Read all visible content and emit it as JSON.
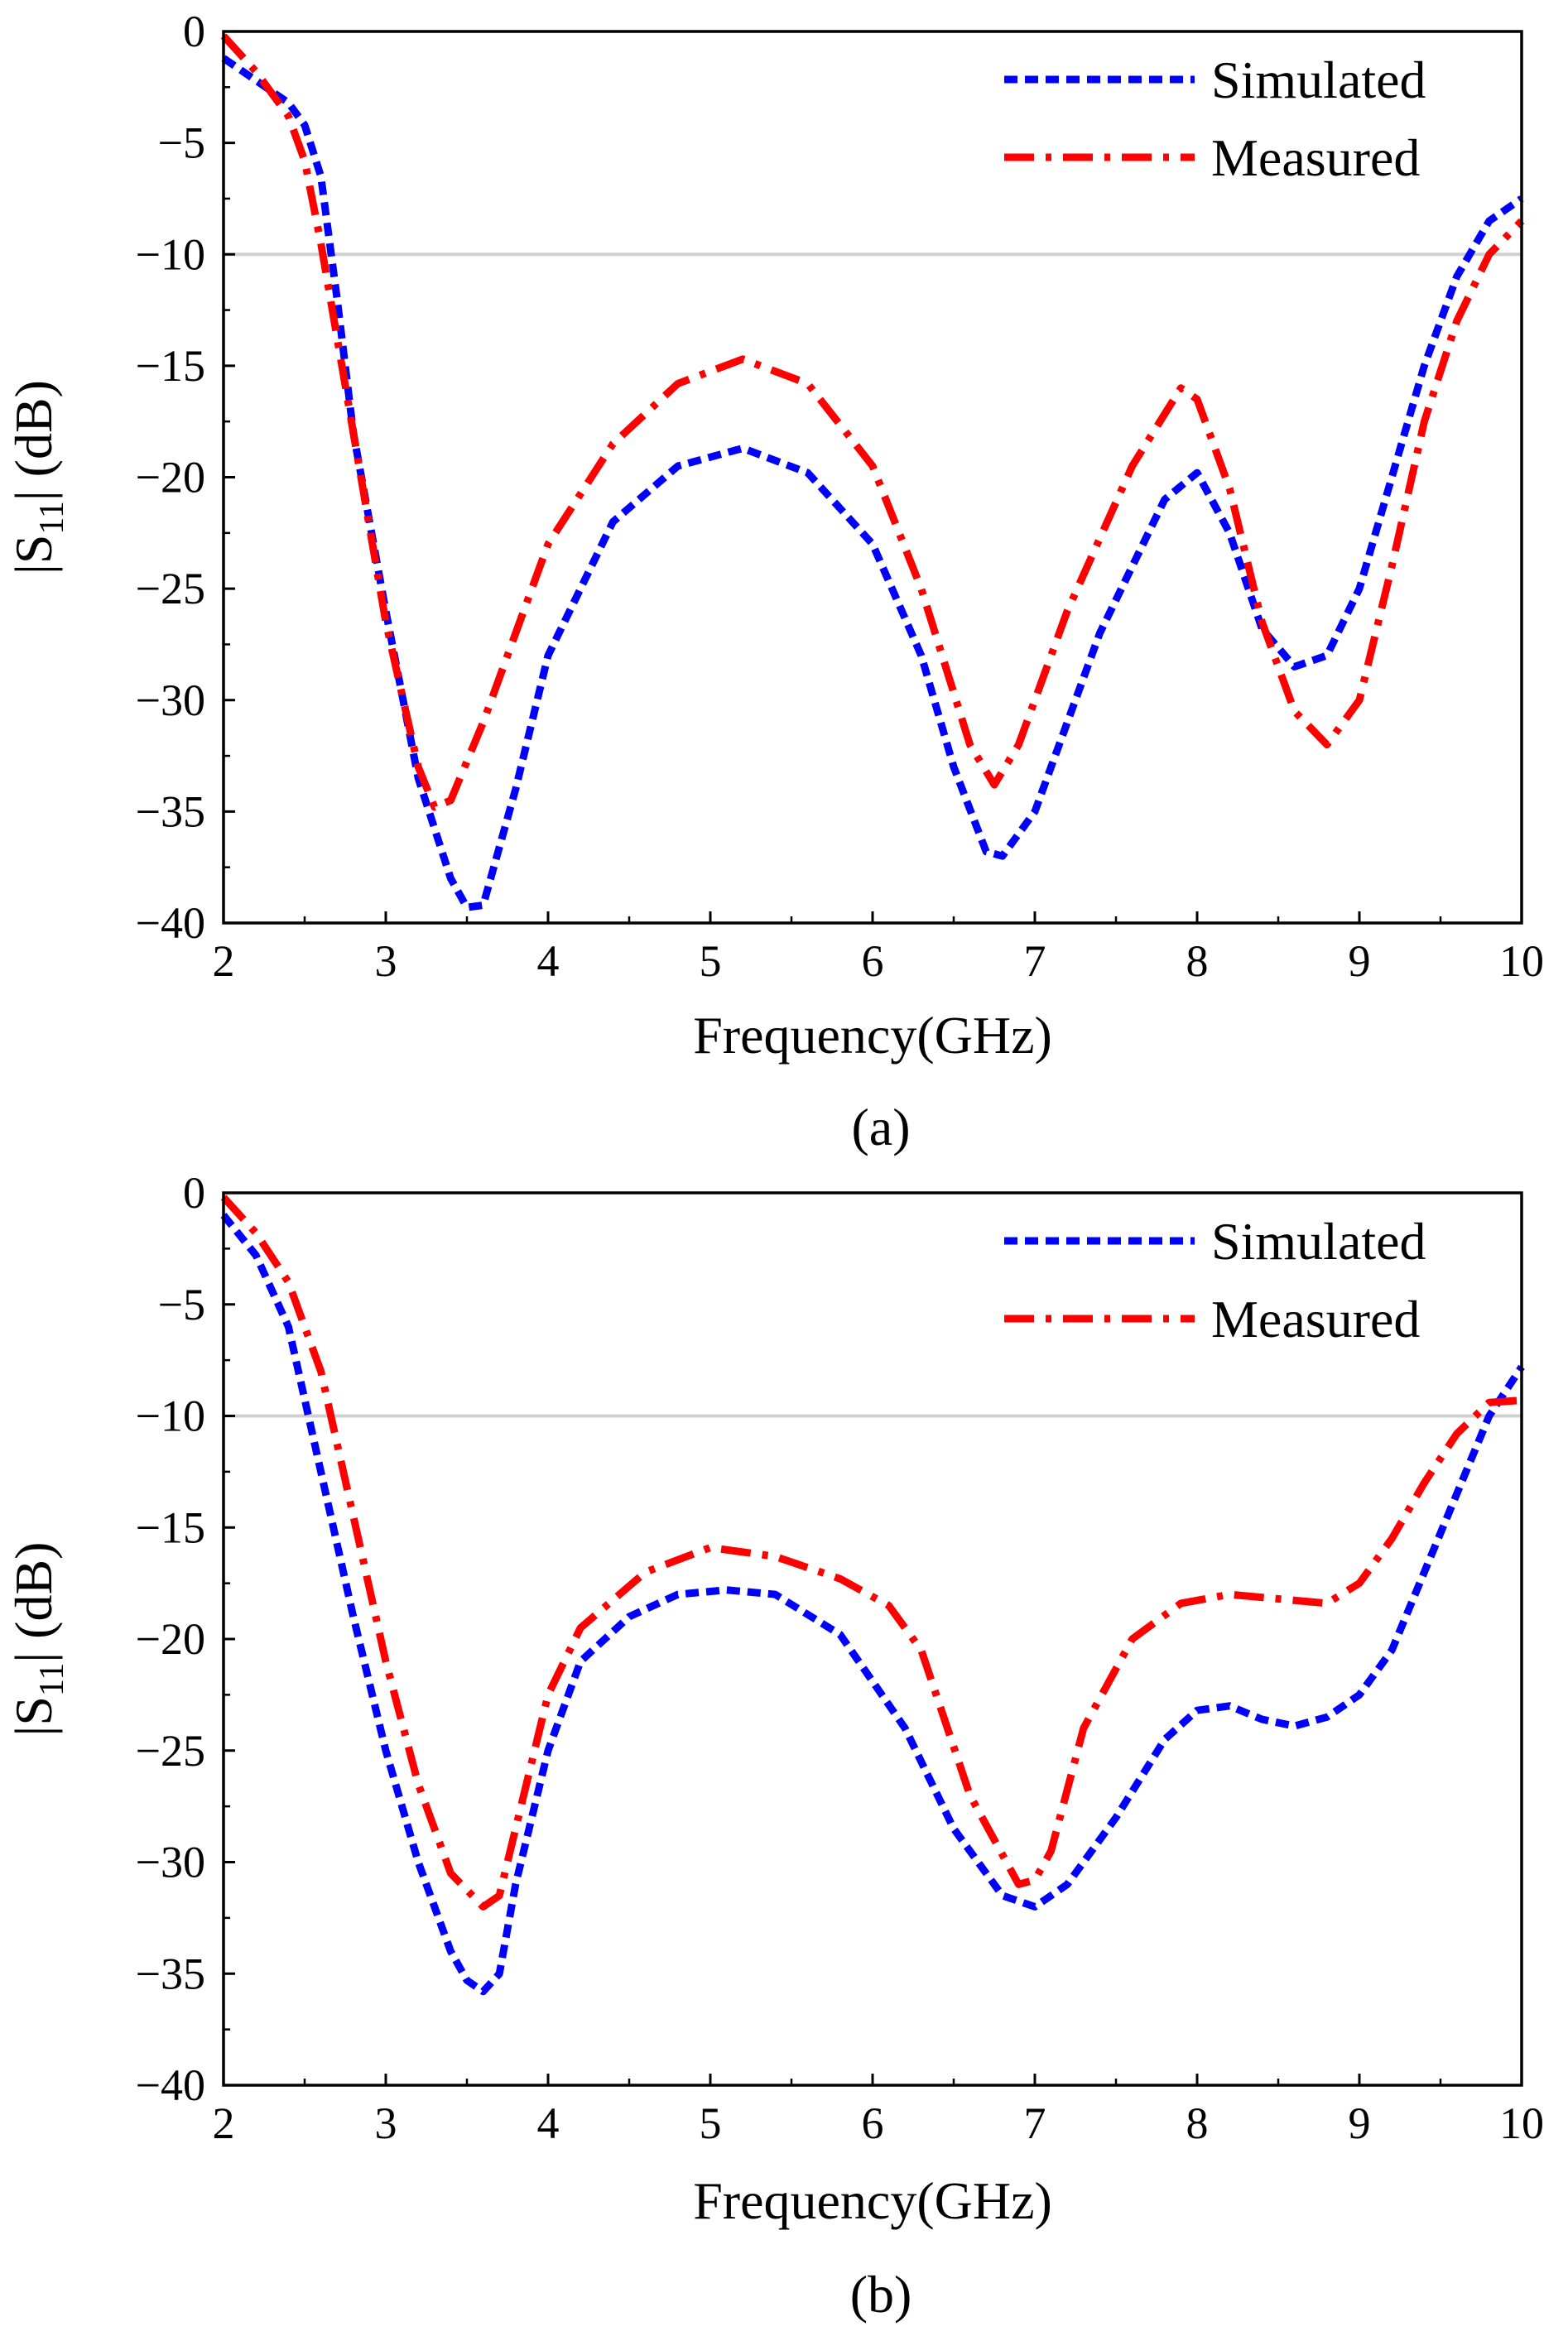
{
  "chart_data": [
    {
      "type": "line",
      "panel_caption": "(a)",
      "xlabel": "Frequency(GHz)",
      "ylabel_main": "|S",
      "ylabel_sub": "11",
      "ylabel_tail": "| (dB)",
      "xlim": [
        2,
        10
      ],
      "ylim": [
        -40,
        0
      ],
      "xticks": [
        2,
        3,
        4,
        5,
        6,
        7,
        8,
        9,
        10
      ],
      "yticks": [
        0,
        -5,
        -10,
        -15,
        -20,
        -25,
        -30,
        -35,
        -40
      ],
      "xtick_labels": [
        "2",
        "3",
        "4",
        "5",
        "6",
        "7",
        "8",
        "9",
        "10"
      ],
      "ytick_labels": [
        "0",
        "-5",
        "-10",
        "-15",
        "-20",
        "-25",
        "-30",
        "-35",
        "-40"
      ],
      "reference_line": -10,
      "legend_position": "top-right",
      "series": [
        {
          "name": "Simulated",
          "color": "#0000ff",
          "style": "dashed",
          "x": [
            2.0,
            2.2,
            2.4,
            2.5,
            2.6,
            2.7,
            2.8,
            3.0,
            3.2,
            3.4,
            3.5,
            3.6,
            3.8,
            4.0,
            4.4,
            4.8,
            5.2,
            5.6,
            6.0,
            6.3,
            6.5,
            6.7,
            6.8,
            7.0,
            7.4,
            7.8,
            8.0,
            8.2,
            8.4,
            8.6,
            8.8,
            9.0,
            9.2,
            9.4,
            9.6,
            9.8,
            10.0
          ],
          "y": [
            -1.2,
            -2.2,
            -3.2,
            -4.2,
            -6.5,
            -12.0,
            -18.0,
            -26.0,
            -33.5,
            -38.0,
            -39.3,
            -39.2,
            -34.0,
            -28.0,
            -22.0,
            -19.5,
            -18.7,
            -19.8,
            -23.0,
            -28.0,
            -33.0,
            -36.8,
            -37.0,
            -35.0,
            -27.0,
            -21.0,
            -19.8,
            -22.5,
            -26.8,
            -28.5,
            -28.0,
            -25.0,
            -20.0,
            -15.0,
            -11.0,
            -8.5,
            -7.5
          ]
        },
        {
          "name": "Measured",
          "color": "#ff0000",
          "style": "dash-dot",
          "x": [
            2.0,
            2.2,
            2.4,
            2.5,
            2.6,
            2.8,
            3.0,
            3.2,
            3.3,
            3.4,
            3.6,
            3.8,
            4.0,
            4.4,
            4.8,
            5.2,
            5.6,
            6.0,
            6.3,
            6.6,
            6.75,
            6.9,
            7.2,
            7.6,
            7.9,
            8.0,
            8.2,
            8.4,
            8.6,
            8.8,
            9.0,
            9.2,
            9.4,
            9.6,
            9.8,
            10.0
          ],
          "y": [
            -0.2,
            -1.8,
            -3.8,
            -5.8,
            -9.5,
            -18.0,
            -26.5,
            -33.0,
            -34.8,
            -34.5,
            -31.0,
            -27.0,
            -23.0,
            -18.5,
            -15.8,
            -14.7,
            -15.8,
            -19.5,
            -25.0,
            -32.0,
            -33.8,
            -32.0,
            -26.0,
            -19.5,
            -16.0,
            -16.5,
            -20.5,
            -26.5,
            -30.5,
            -32.0,
            -30.0,
            -24.0,
            -17.5,
            -13.0,
            -10.0,
            -8.5
          ]
        }
      ]
    },
    {
      "type": "line",
      "panel_caption": "(b)",
      "xlabel": "Frequency(GHz)",
      "ylabel_main": "|S",
      "ylabel_sub": "11",
      "ylabel_tail": "| (dB)",
      "xlim": [
        2,
        10
      ],
      "ylim": [
        -40,
        0
      ],
      "xticks": [
        2,
        3,
        4,
        5,
        6,
        7,
        8,
        9,
        10
      ],
      "yticks": [
        0,
        -5,
        -10,
        -15,
        -20,
        -25,
        -30,
        -35,
        -40
      ],
      "xtick_labels": [
        "2",
        "3",
        "4",
        "5",
        "6",
        "7",
        "8",
        "9",
        "10"
      ],
      "ytick_labels": [
        "0",
        "-5",
        "-10",
        "-15",
        "-20",
        "-25",
        "-30",
        "-35",
        "-40"
      ],
      "reference_line": -10,
      "legend_position": "top-right",
      "series": [
        {
          "name": "Simulated",
          "color": "#0000ff",
          "style": "dashed",
          "x": [
            2.0,
            2.2,
            2.4,
            2.6,
            2.8,
            3.0,
            3.2,
            3.4,
            3.5,
            3.6,
            3.7,
            3.8,
            4.0,
            4.2,
            4.5,
            4.8,
            5.1,
            5.4,
            5.8,
            6.2,
            6.5,
            6.8,
            7.0,
            7.2,
            7.5,
            7.8,
            8.0,
            8.2,
            8.4,
            8.6,
            8.8,
            9.0,
            9.2,
            9.4,
            9.6,
            9.8,
            10.0
          ],
          "y": [
            -1.0,
            -2.8,
            -6.0,
            -12.5,
            -19.0,
            -25.0,
            -30.0,
            -34.0,
            -35.3,
            -35.8,
            -35.0,
            -31.0,
            -25.0,
            -21.0,
            -19.0,
            -18.0,
            -17.8,
            -18.0,
            -19.8,
            -24.0,
            -28.5,
            -31.5,
            -32.0,
            -31.0,
            -28.0,
            -24.5,
            -23.2,
            -23.0,
            -23.6,
            -23.9,
            -23.5,
            -22.5,
            -20.5,
            -17.0,
            -13.5,
            -10.0,
            -7.8
          ]
        },
        {
          "name": "Measured",
          "color": "#ff0000",
          "style": "dash-dot",
          "x": [
            2.0,
            2.2,
            2.4,
            2.6,
            2.8,
            3.0,
            3.2,
            3.4,
            3.6,
            3.7,
            3.8,
            4.0,
            4.2,
            4.6,
            5.0,
            5.4,
            5.8,
            6.1,
            6.3,
            6.6,
            6.9,
            7.0,
            7.1,
            7.3,
            7.6,
            7.9,
            8.2,
            8.5,
            8.8,
            9.0,
            9.2,
            9.4,
            9.6,
            9.8,
            10.0
          ],
          "y": [
            -0.2,
            -1.8,
            -4.0,
            -8.0,
            -14.5,
            -21.0,
            -26.5,
            -30.5,
            -32.0,
            -31.5,
            -28.5,
            -22.5,
            -19.5,
            -17.0,
            -15.9,
            -16.3,
            -17.3,
            -18.5,
            -20.5,
            -27.0,
            -31.0,
            -30.8,
            -29.5,
            -24.0,
            -20.0,
            -18.4,
            -18.0,
            -18.2,
            -18.4,
            -17.5,
            -15.5,
            -13.0,
            -10.8,
            -9.4,
            -9.3
          ]
        }
      ]
    }
  ]
}
